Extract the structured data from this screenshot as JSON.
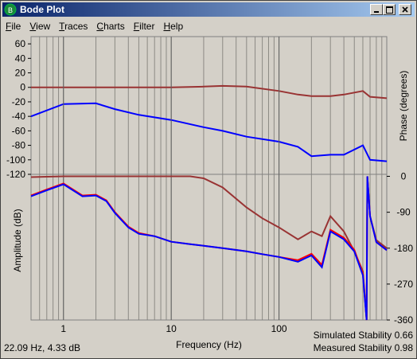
{
  "window": {
    "title": "Bode Plot"
  },
  "menu": [
    "File",
    "View",
    "Traces",
    "Charts",
    "Filter",
    "Help"
  ],
  "chart_data": [
    {
      "type": "line",
      "ylabel": "Amplitude (dB)",
      "x": [
        0.5,
        1,
        2,
        3,
        5,
        10,
        20,
        30,
        50,
        100,
        150,
        200,
        300,
        400,
        600,
        700,
        1000
      ],
      "xlim": [
        0.5,
        1000
      ],
      "xscale": "log",
      "ylim": [
        -120,
        70
      ],
      "yticks": [
        60,
        40,
        20,
        0,
        -20,
        -40,
        -60,
        -80,
        -100,
        -120
      ],
      "series": [
        {
          "color": "#993333",
          "values": [
            0,
            0,
            0,
            0,
            0,
            0,
            1,
            2,
            1,
            -5,
            -10,
            -12,
            -12,
            -10,
            -5,
            -13,
            -15
          ]
        },
        {
          "color": "#0000ff",
          "values": [
            -40,
            -23,
            -22,
            -30,
            -38,
            -45,
            -55,
            -60,
            -68,
            -75,
            -82,
            -95,
            -93,
            -93,
            -80,
            -100,
            -102
          ]
        }
      ]
    },
    {
      "type": "line",
      "ylabel": "Phase (degrees)",
      "xlabel": "Frequency (Hz)",
      "x": [
        0.5,
        0.7,
        1,
        1.5,
        2,
        2.5,
        3,
        4,
        5,
        7,
        10,
        15,
        20,
        30,
        50,
        70,
        100,
        150,
        200,
        250,
        300,
        400,
        500,
        600,
        650,
        660,
        700,
        800,
        1000
      ],
      "xlim": [
        0.5,
        1000
      ],
      "xscale": "log",
      "xticks": [
        1,
        10,
        100
      ],
      "y2lim": [
        -360,
        5
      ],
      "y2ticks": [
        0,
        -90,
        -180,
        -270,
        -360
      ],
      "series": [
        {
          "color": "#993333",
          "axis": "y2",
          "values": [
            -2,
            -1,
            0,
            0,
            0,
            0,
            0,
            0,
            0,
            0,
            0,
            0,
            -5,
            -28,
            -78,
            -105,
            -128,
            -158,
            -138,
            -150,
            -100,
            -138,
            -188,
            -238,
            -360,
            0,
            -100,
            -160,
            -180
          ]
        },
        {
          "color": "#ff0000",
          "axis": "y2",
          "values": [
            -48,
            -33,
            -18,
            -48,
            -46,
            -60,
            -90,
            -126,
            -142,
            -150,
            -164,
            -170,
            -174,
            -180,
            -188,
            -195,
            -202,
            -210,
            -194,
            -222,
            -134,
            -154,
            -184,
            -244,
            -360,
            0,
            -100,
            -165,
            -185
          ]
        },
        {
          "color": "#0000ff",
          "axis": "y2",
          "values": [
            -50,
            -35,
            -20,
            -50,
            -48,
            -62,
            -92,
            -128,
            -144,
            -150,
            -164,
            -170,
            -174,
            -180,
            -188,
            -195,
            -202,
            -214,
            -198,
            -228,
            -138,
            -158,
            -188,
            -248,
            -360,
            0,
            -100,
            -165,
            -185
          ]
        }
      ]
    }
  ],
  "status": {
    "cursor": "22.09 Hz, 4.33 dB",
    "simulated": "Simulated Stability 0.66",
    "measured": "Measured Stability 0.98"
  }
}
